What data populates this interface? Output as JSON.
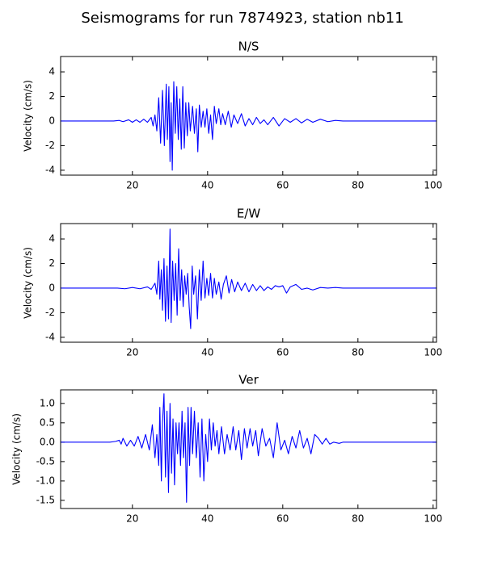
{
  "title": "Seismograms for run 7874923, station nb11",
  "chart_data": [
    {
      "type": "line",
      "title": "N/S",
      "ylabel": "Velocity (cm/s)",
      "x": [
        1,
        15,
        16.5,
        17.5,
        19,
        20,
        21,
        22,
        23,
        24,
        25,
        25.5,
        26,
        26.5,
        27,
        27.5,
        28,
        28.5,
        29,
        29.3,
        29.7,
        30,
        30.3,
        30.6,
        31,
        31.4,
        31.8,
        32.2,
        32.6,
        33,
        33.4,
        33.8,
        34.2,
        34.6,
        35,
        35.4,
        36,
        36.5,
        37,
        37.4,
        37.8,
        38.3,
        38.8,
        39.3,
        39.8,
        40.3,
        40.8,
        41.3,
        41.8,
        42.3,
        43,
        43.5,
        44,
        44.7,
        45.5,
        46.3,
        47,
        48,
        49,
        50,
        51,
        52,
        53,
        54,
        55,
        56,
        57.5,
        59,
        60.5,
        62,
        63.5,
        65,
        66.5,
        68,
        70,
        72,
        74,
        76,
        101
      ],
      "series": [
        {
          "color": "#0000ff",
          "values": [
            0,
            0,
            0.05,
            -0.05,
            0.1,
            -0.1,
            0.1,
            -0.1,
            0.15,
            -0.1,
            0.3,
            -0.4,
            0.5,
            -0.8,
            1.9,
            -1.8,
            2.5,
            -2.0,
            3.0,
            -1.5,
            2.8,
            -3.3,
            1.5,
            -4.0,
            3.2,
            -1.0,
            2.8,
            -1.5,
            1.8,
            -2.3,
            2.8,
            -2.2,
            1.5,
            -1.2,
            1.5,
            -0.8,
            1.2,
            -1.0,
            1.0,
            -2.5,
            1.3,
            -0.5,
            0.8,
            -0.5,
            1.0,
            -1.0,
            0.5,
            -1.5,
            1.2,
            -0.2,
            1.0,
            -0.3,
            0.6,
            -0.3,
            0.8,
            -0.5,
            0.5,
            -0.2,
            0.6,
            -0.4,
            0.2,
            -0.3,
            0.3,
            -0.2,
            0.1,
            -0.3,
            0.3,
            -0.4,
            0.2,
            -0.1,
            0.2,
            -0.15,
            0.15,
            -0.1,
            0.15,
            -0.05,
            0.05,
            0,
            0
          ]
        }
      ],
      "xlim": [
        0.9,
        100.9
      ],
      "xticks": [
        20,
        40,
        60,
        80,
        100
      ],
      "ylim": [
        -4.4,
        5.25
      ],
      "yticks": [
        -4,
        -2,
        0,
        2,
        4
      ]
    },
    {
      "type": "line",
      "title": "E/W",
      "ylabel": "Velocity (cm/s)",
      "x": [
        1,
        16,
        18,
        20,
        22,
        24,
        25,
        26,
        26.5,
        27,
        27.3,
        27.7,
        28,
        28.4,
        28.8,
        29.2,
        29.6,
        30,
        30.3,
        30.7,
        31.1,
        31.5,
        31.9,
        32.3,
        32.7,
        33.1,
        33.5,
        33.9,
        34.3,
        34.7,
        35.1,
        35.5,
        35.9,
        36.3,
        36.8,
        37.3,
        37.8,
        38.3,
        38.8,
        39.3,
        39.8,
        40.3,
        40.8,
        41.3,
        41.8,
        42.3,
        43,
        43.6,
        44.2,
        45,
        45.7,
        46.4,
        47.2,
        48,
        49,
        50,
        51,
        52,
        53,
        54,
        55,
        56,
        57,
        58,
        59,
        60,
        61,
        62,
        63.5,
        65,
        66.5,
        68,
        70,
        72,
        74,
        76,
        101
      ],
      "series": [
        {
          "color": "#0000ff",
          "values": [
            0,
            0,
            -0.05,
            0.05,
            -0.05,
            0.1,
            -0.1,
            0.4,
            -0.5,
            2.2,
            -0.9,
            1.5,
            -1.8,
            2.4,
            -2.7,
            1.8,
            -2.5,
            4.8,
            -2.8,
            2.2,
            -1.0,
            2.0,
            -2.2,
            3.2,
            -1.0,
            1.5,
            -1.5,
            1.0,
            -0.5,
            1.2,
            -1.5,
            -3.3,
            1.8,
            -0.5,
            1.0,
            -2.5,
            1.5,
            -1.0,
            2.2,
            -0.8,
            0.8,
            -0.6,
            1.2,
            -0.8,
            0.8,
            -0.5,
            0.5,
            -0.9,
            0.3,
            1.0,
            -0.4,
            0.7,
            -0.3,
            0.5,
            -0.2,
            0.4,
            -0.3,
            0.3,
            -0.2,
            0.2,
            -0.2,
            0.1,
            -0.1,
            0.2,
            0.1,
            0.2,
            -0.4,
            0.1,
            0.3,
            -0.1,
            0,
            -0.15,
            0.05,
            0,
            0.05,
            0,
            0
          ]
        }
      ],
      "xlim": [
        0.9,
        100.9
      ],
      "xticks": [
        20,
        40,
        60,
        80,
        100
      ],
      "ylim": [
        -4.4,
        5.25
      ],
      "yticks": [
        -4,
        -2,
        0,
        2,
        4
      ]
    },
    {
      "type": "line",
      "title": "Ver",
      "ylabel": "Velocity (cm/s)",
      "x": [
        1,
        14,
        15.5,
        16.5,
        17,
        17.5,
        18.5,
        19.5,
        20.5,
        21.5,
        22.5,
        23.5,
        24.5,
        25.3,
        26,
        26.5,
        27,
        27.3,
        27.7,
        28,
        28.4,
        28.8,
        29.2,
        29.6,
        30,
        30.4,
        30.8,
        31.2,
        31.6,
        32,
        32.4,
        32.8,
        33.2,
        33.6,
        34,
        34.4,
        34.8,
        35.2,
        35.6,
        36,
        36.5,
        37,
        37.5,
        38,
        38.5,
        39,
        39.5,
        40,
        40.5,
        41,
        41.5,
        42,
        42.5,
        43,
        43.7,
        44.5,
        45.2,
        46,
        46.8,
        47.5,
        48.3,
        49,
        49.8,
        50.5,
        51.3,
        52,
        52.8,
        53.5,
        54.5,
        55.5,
        56.5,
        57.5,
        58.5,
        59.5,
        60.5,
        61.5,
        62.5,
        63.5,
        64.5,
        65.5,
        66.5,
        67.5,
        68.5,
        69.5,
        70.5,
        71.5,
        72.5,
        73.5,
        75,
        76,
        101
      ],
      "series": [
        {
          "color": "#0000ff",
          "values": [
            0,
            0,
            0.02,
            0.05,
            -0.05,
            0.1,
            -0.1,
            0.05,
            -0.1,
            0.15,
            -0.15,
            0.2,
            -0.2,
            0.45,
            -0.4,
            0.2,
            -0.6,
            0.9,
            -1.0,
            0.5,
            1.25,
            -0.9,
            0.8,
            -1.3,
            1.0,
            -0.8,
            0.6,
            -1.1,
            0.5,
            -0.3,
            0.5,
            -0.6,
            0.8,
            -0.4,
            0.5,
            -1.55,
            0.9,
            -0.6,
            0.9,
            -0.3,
            0.8,
            -0.4,
            0.5,
            -0.9,
            0.6,
            -1.0,
            0.2,
            -0.5,
            0.6,
            -0.2,
            0.5,
            -0.1,
            0.3,
            -0.3,
            0.4,
            -0.3,
            0.2,
            -0.2,
            0.4,
            -0.2,
            0.3,
            -0.45,
            0.35,
            -0.15,
            0.35,
            -0.1,
            0.3,
            -0.35,
            0.35,
            -0.1,
            0.1,
            -0.4,
            0.5,
            -0.2,
            0.05,
            -0.3,
            0.15,
            -0.15,
            0.3,
            -0.15,
            0.1,
            -0.3,
            0.2,
            0.1,
            -0.05,
            0.1,
            -0.05,
            0,
            -0.03,
            0,
            0
          ]
        }
      ],
      "xlim": [
        0.9,
        100.9
      ],
      "xticks": [
        20,
        40,
        60,
        80,
        100
      ],
      "ylim": [
        -1.71,
        1.35
      ],
      "yticks": [
        {
          "value": -1.5,
          "label": "-1.5"
        },
        {
          "value": -1.0,
          "label": "-1.0"
        },
        -0.5,
        {
          "value": 0.0,
          "label": "0.0"
        },
        0.5,
        {
          "value": 1.0,
          "label": "1.0"
        }
      ]
    }
  ]
}
